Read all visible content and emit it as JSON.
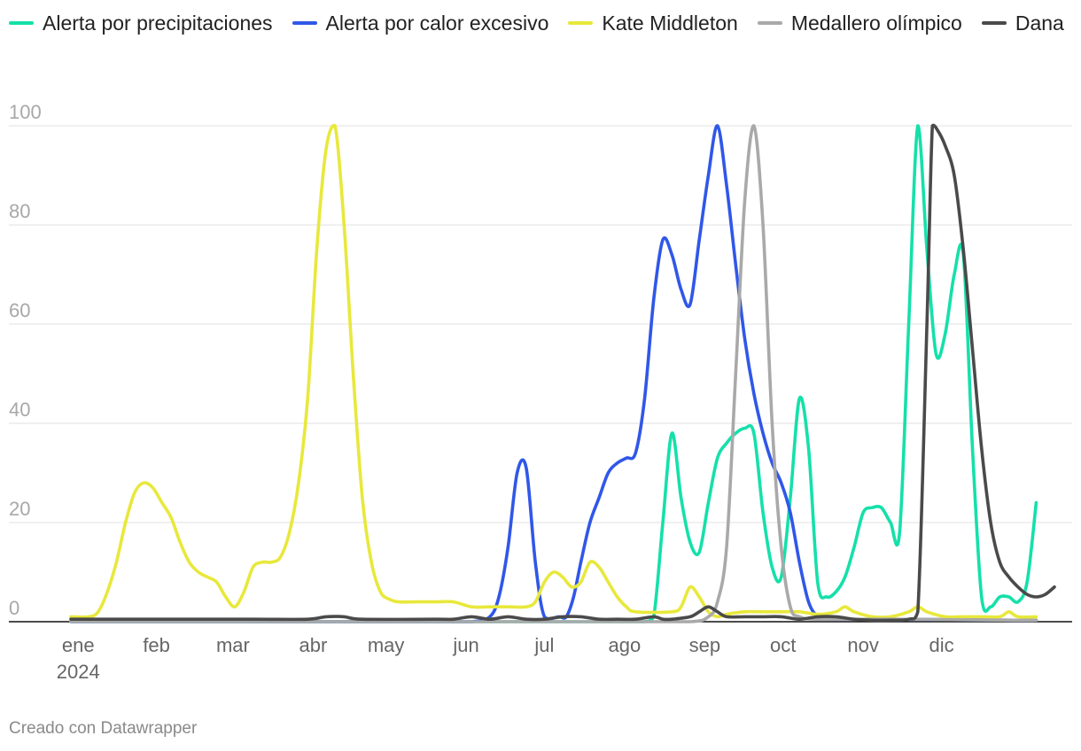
{
  "chart_data": {
    "type": "line",
    "title": "",
    "ylim": [
      0,
      100
    ],
    "yticks": [
      0,
      20,
      40,
      60,
      80,
      100
    ],
    "xlim": [
      0,
      52
    ],
    "x_ticks": [
      {
        "week": 0.4,
        "label": "ene",
        "sublabel": "2024"
      },
      {
        "week": 4.7,
        "label": "feb"
      },
      {
        "week": 8.9,
        "label": "mar"
      },
      {
        "week": 13.3,
        "label": "abr"
      },
      {
        "week": 17.3,
        "label": "may"
      },
      {
        "week": 21.7,
        "label": "jun"
      },
      {
        "week": 26.0,
        "label": "jul"
      },
      {
        "week": 30.4,
        "label": "ago"
      },
      {
        "week": 34.8,
        "label": "sep"
      },
      {
        "week": 39.1,
        "label": "oct"
      },
      {
        "week": 43.5,
        "label": "nov"
      },
      {
        "week": 47.8,
        "label": "dic"
      }
    ],
    "series": [
      {
        "name": "Alerta por precipitaciones",
        "color": "#15e0aa",
        "points": [
          [
            0,
            0
          ],
          [
            10,
            0
          ],
          [
            20,
            0
          ],
          [
            29,
            0
          ],
          [
            30.5,
            0
          ],
          [
            31.5,
            0
          ],
          [
            32,
            1
          ],
          [
            32.5,
            20
          ],
          [
            33,
            38
          ],
          [
            33.5,
            25
          ],
          [
            34,
            16
          ],
          [
            34.5,
            14
          ],
          [
            35,
            24
          ],
          [
            35.5,
            33
          ],
          [
            36,
            36
          ],
          [
            36.5,
            38
          ],
          [
            37,
            39
          ],
          [
            37.5,
            38
          ],
          [
            38,
            22
          ],
          [
            38.5,
            11
          ],
          [
            39,
            9
          ],
          [
            39.5,
            25
          ],
          [
            40,
            45
          ],
          [
            40.5,
            35
          ],
          [
            41,
            8
          ],
          [
            41.5,
            5
          ],
          [
            42,
            6
          ],
          [
            42.5,
            9
          ],
          [
            43,
            15
          ],
          [
            43.5,
            22
          ],
          [
            44,
            23
          ],
          [
            44.5,
            23
          ],
          [
            45,
            20
          ],
          [
            45.5,
            18
          ],
          [
            46,
            60
          ],
          [
            46.5,
            100
          ],
          [
            47,
            75
          ],
          [
            47.5,
            54
          ],
          [
            48,
            58
          ],
          [
            48.5,
            70
          ],
          [
            49,
            74
          ],
          [
            49.5,
            35
          ],
          [
            50,
            5
          ],
          [
            50.5,
            3
          ],
          [
            51,
            5
          ],
          [
            51.5,
            5
          ],
          [
            52,
            4
          ],
          [
            52.5,
            8
          ],
          [
            53,
            24
          ]
        ]
      },
      {
        "name": "Alerta por calor excesivo",
        "color": "#3057e8",
        "points": [
          [
            0,
            0
          ],
          [
            10,
            0
          ],
          [
            20,
            0
          ],
          [
            22,
            0
          ],
          [
            23,
            1
          ],
          [
            23.5,
            5
          ],
          [
            24,
            15
          ],
          [
            24.5,
            30
          ],
          [
            25,
            31
          ],
          [
            25.5,
            12
          ],
          [
            26,
            1
          ],
          [
            26.8,
            1
          ],
          [
            27.2,
            1
          ],
          [
            27.6,
            5
          ],
          [
            28,
            12
          ],
          [
            28.5,
            20
          ],
          [
            29,
            25
          ],
          [
            29.5,
            30
          ],
          [
            30,
            32
          ],
          [
            30.5,
            33
          ],
          [
            31,
            34
          ],
          [
            31.5,
            45
          ],
          [
            32,
            65
          ],
          [
            32.5,
            77
          ],
          [
            33,
            74
          ],
          [
            33.5,
            67
          ],
          [
            34,
            64
          ],
          [
            34.5,
            77
          ],
          [
            35,
            90
          ],
          [
            35.5,
            100
          ],
          [
            36,
            88
          ],
          [
            36.5,
            72
          ],
          [
            37,
            57
          ],
          [
            37.5,
            46
          ],
          [
            38,
            38
          ],
          [
            38.5,
            32
          ],
          [
            39,
            28
          ],
          [
            39.5,
            22
          ],
          [
            40,
            12
          ],
          [
            40.5,
            4
          ],
          [
            41,
            1
          ],
          [
            41.5,
            0.5
          ],
          [
            45,
            0.5
          ],
          [
            52,
            0.3
          ],
          [
            53,
            0.3
          ]
        ]
      },
      {
        "name": "Kate Middleton",
        "color": "#e8e83c",
        "points": [
          [
            0,
            1
          ],
          [
            1,
            1
          ],
          [
            1.5,
            2
          ],
          [
            2,
            6
          ],
          [
            2.5,
            12
          ],
          [
            3,
            20
          ],
          [
            3.5,
            26
          ],
          [
            4,
            28
          ],
          [
            4.5,
            27
          ],
          [
            5,
            24
          ],
          [
            5.5,
            21
          ],
          [
            6,
            16
          ],
          [
            6.5,
            12
          ],
          [
            7,
            10
          ],
          [
            7.5,
            9
          ],
          [
            8,
            8
          ],
          [
            8.5,
            5
          ],
          [
            9,
            3
          ],
          [
            9.5,
            6
          ],
          [
            10,
            11
          ],
          [
            10.5,
            12
          ],
          [
            11,
            12
          ],
          [
            11.5,
            13
          ],
          [
            12,
            18
          ],
          [
            12.5,
            28
          ],
          [
            13,
            45
          ],
          [
            13.5,
            75
          ],
          [
            14,
            95
          ],
          [
            14.5,
            100
          ],
          [
            15,
            80
          ],
          [
            15.5,
            50
          ],
          [
            16,
            25
          ],
          [
            16.5,
            12
          ],
          [
            17,
            6
          ],
          [
            17.5,
            4.5
          ],
          [
            18,
            4
          ],
          [
            19,
            4
          ],
          [
            20,
            4
          ],
          [
            21,
            4
          ],
          [
            22,
            3
          ],
          [
            23,
            3
          ],
          [
            24,
            3
          ],
          [
            25,
            3
          ],
          [
            25.5,
            4
          ],
          [
            26,
            8
          ],
          [
            26.5,
            10
          ],
          [
            27,
            9
          ],
          [
            27.5,
            7
          ],
          [
            28,
            8
          ],
          [
            28.5,
            12
          ],
          [
            29,
            11
          ],
          [
            29.5,
            8
          ],
          [
            30,
            5
          ],
          [
            30.5,
            3
          ],
          [
            31,
            2
          ],
          [
            33,
            2
          ],
          [
            33.5,
            3
          ],
          [
            34,
            7
          ],
          [
            34.5,
            5
          ],
          [
            35,
            2
          ],
          [
            35.5,
            1
          ],
          [
            36,
            1.5
          ],
          [
            37,
            2
          ],
          [
            38,
            2
          ],
          [
            39,
            2
          ],
          [
            40,
            2
          ],
          [
            41,
            1.5
          ],
          [
            42,
            2
          ],
          [
            42.5,
            3
          ],
          [
            43,
            2
          ],
          [
            44,
            1
          ],
          [
            45,
            1
          ],
          [
            46,
            2
          ],
          [
            46.5,
            3
          ],
          [
            47,
            2
          ],
          [
            48,
            1
          ],
          [
            49,
            1
          ],
          [
            50,
            1
          ],
          [
            51,
            1
          ],
          [
            51.5,
            2
          ],
          [
            52,
            1
          ],
          [
            53,
            1
          ]
        ]
      },
      {
        "name": "Medallero olímpico",
        "color": "#a9a9a9",
        "points": [
          [
            0,
            0
          ],
          [
            10,
            0
          ],
          [
            20,
            0
          ],
          [
            30,
            0
          ],
          [
            34,
            0
          ],
          [
            35,
            1
          ],
          [
            35.5,
            4
          ],
          [
            36,
            15
          ],
          [
            36.5,
            50
          ],
          [
            37,
            85
          ],
          [
            37.5,
            100
          ],
          [
            38,
            80
          ],
          [
            38.5,
            40
          ],
          [
            39,
            15
          ],
          [
            39.5,
            3
          ],
          [
            40,
            1
          ],
          [
            41,
            0.5
          ],
          [
            45,
            0.5
          ],
          [
            52,
            0.3
          ],
          [
            53,
            0.3
          ]
        ]
      },
      {
        "name": "Dana",
        "color": "#4a4a4a",
        "points": [
          [
            0,
            0.5
          ],
          [
            5,
            0.5
          ],
          [
            10,
            0.5
          ],
          [
            13,
            0.5
          ],
          [
            14,
            1
          ],
          [
            15,
            1
          ],
          [
            16,
            0.5
          ],
          [
            20,
            0.5
          ],
          [
            21,
            0.5
          ],
          [
            22,
            1
          ],
          [
            23,
            0.5
          ],
          [
            24,
            1
          ],
          [
            25,
            0.5
          ],
          [
            26,
            0.5
          ],
          [
            27,
            1
          ],
          [
            28,
            1
          ],
          [
            29,
            0.5
          ],
          [
            30,
            0.5
          ],
          [
            31,
            0.5
          ],
          [
            32,
            1
          ],
          [
            32.5,
            0.5
          ],
          [
            33,
            0.5
          ],
          [
            34,
            1
          ],
          [
            34.5,
            2
          ],
          [
            35,
            3
          ],
          [
            35.5,
            2
          ],
          [
            36,
            1
          ],
          [
            37,
            1
          ],
          [
            38,
            1
          ],
          [
            39,
            1
          ],
          [
            40,
            0.5
          ],
          [
            41,
            1
          ],
          [
            42,
            1
          ],
          [
            43,
            0.5
          ],
          [
            44,
            0.3
          ],
          [
            45,
            0.3
          ],
          [
            46,
            0.5
          ],
          [
            46.5,
            2
          ],
          [
            47,
            60
          ],
          [
            47.3,
            100
          ],
          [
            47.6,
            99
          ],
          [
            48,
            96
          ],
          [
            48.5,
            90
          ],
          [
            49,
            75
          ],
          [
            49.5,
            55
          ],
          [
            50,
            35
          ],
          [
            50.5,
            20
          ],
          [
            51,
            12
          ],
          [
            51.5,
            9
          ],
          [
            52,
            7
          ],
          [
            52.5,
            5.5
          ],
          [
            53,
            5
          ],
          [
            53.5,
            5.5
          ],
          [
            54,
            7
          ]
        ]
      }
    ]
  },
  "footer": {
    "credit": "Creado con Datawrapper"
  }
}
